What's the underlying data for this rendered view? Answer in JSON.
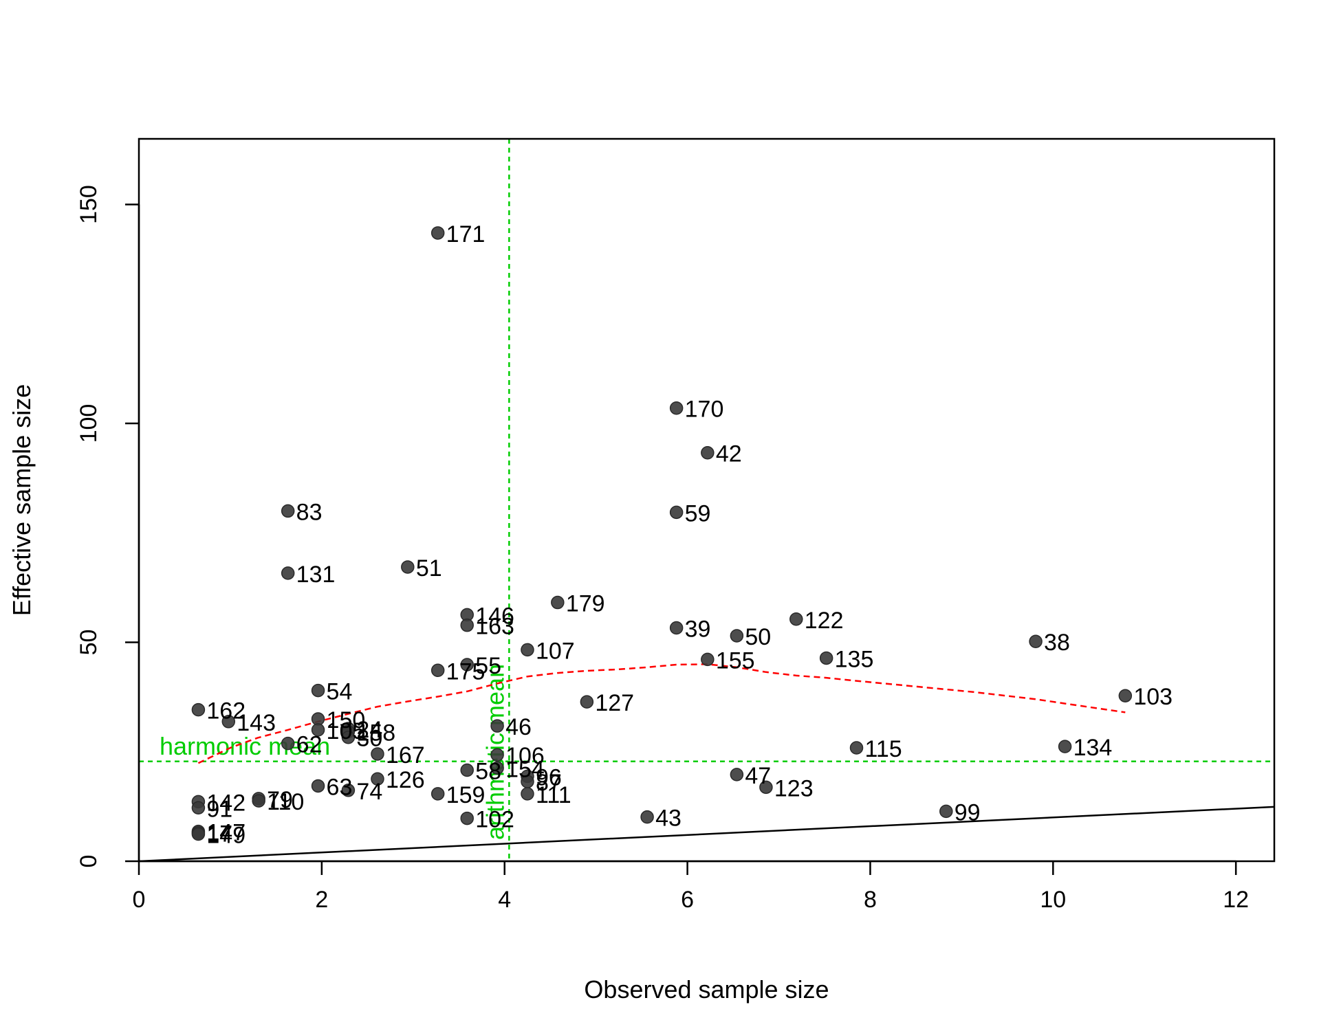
{
  "chart_data": {
    "type": "scatter",
    "title": "",
    "xlabel": "Observed sample size",
    "ylabel": "Effective sample size",
    "xlim": [
      0,
      12.42
    ],
    "ylim": [
      0,
      165
    ],
    "x_ticks": [
      0,
      2,
      4,
      6,
      8,
      10,
      12
    ],
    "y_ticks": [
      0,
      50,
      100,
      150
    ],
    "grid": false,
    "legend": "none",
    "colors": {
      "point": "#3a3a3a",
      "smooth": "#ff0000",
      "reference": "#00cc00",
      "identity": "#000000"
    },
    "points": [
      {
        "id": "171",
        "x": 3.27,
        "y": 143.5
      },
      {
        "id": "170",
        "x": 5.88,
        "y": 103.5
      },
      {
        "id": "42",
        "x": 6.22,
        "y": 93.3
      },
      {
        "id": "83",
        "x": 1.63,
        "y": 80.0
      },
      {
        "id": "59",
        "x": 5.88,
        "y": 79.7
      },
      {
        "id": "131",
        "x": 1.63,
        "y": 65.8
      },
      {
        "id": "51",
        "x": 2.94,
        "y": 67.2
      },
      {
        "id": "179",
        "x": 4.58,
        "y": 59.1
      },
      {
        "id": "146",
        "x": 3.59,
        "y": 56.3
      },
      {
        "id": "163",
        "x": 3.59,
        "y": 53.9
      },
      {
        "id": "39",
        "x": 5.88,
        "y": 53.3
      },
      {
        "id": "50",
        "x": 6.54,
        "y": 51.5
      },
      {
        "id": "122",
        "x": 7.19,
        "y": 55.3
      },
      {
        "id": "38",
        "x": 9.81,
        "y": 50.2
      },
      {
        "id": "107",
        "x": 4.25,
        "y": 48.3
      },
      {
        "id": "155",
        "x": 6.22,
        "y": 46.1
      },
      {
        "id": "135",
        "x": 7.52,
        "y": 46.4
      },
      {
        "id": "175",
        "x": 3.27,
        "y": 43.6
      },
      {
        "id": "55",
        "x": 3.59,
        "y": 44.9
      },
      {
        "id": "54",
        "x": 1.96,
        "y": 39.0
      },
      {
        "id": "103",
        "x": 10.79,
        "y": 37.8
      },
      {
        "id": "127",
        "x": 4.9,
        "y": 36.4
      },
      {
        "id": "162",
        "x": 0.65,
        "y": 34.6
      },
      {
        "id": "143",
        "x": 0.98,
        "y": 31.9
      },
      {
        "id": "150",
        "x": 1.96,
        "y": 32.5
      },
      {
        "id": "46",
        "x": 3.92,
        "y": 30.9
      },
      {
        "id": "105",
        "x": 1.96,
        "y": 30.0
      },
      {
        "id": "24",
        "x": 2.29,
        "y": 30.3
      },
      {
        "id": "158",
        "x": 2.29,
        "y": 29.6
      },
      {
        "id": "30",
        "x": 2.29,
        "y": 28.3
      },
      {
        "id": "62",
        "x": 1.63,
        "y": 26.9
      },
      {
        "id": "115",
        "x": 7.85,
        "y": 25.9
      },
      {
        "id": "134",
        "x": 10.13,
        "y": 26.2
      },
      {
        "id": "167",
        "x": 2.61,
        "y": 24.5
      },
      {
        "id": "106",
        "x": 3.92,
        "y": 24.3
      },
      {
        "id": "58",
        "x": 3.59,
        "y": 20.8
      },
      {
        "id": "154",
        "x": 3.92,
        "y": 21.3
      },
      {
        "id": "47",
        "x": 6.54,
        "y": 19.8
      },
      {
        "id": "96",
        "x": 4.25,
        "y": 19.4
      },
      {
        "id": "87",
        "x": 4.25,
        "y": 18.2
      },
      {
        "id": "126",
        "x": 2.61,
        "y": 18.8
      },
      {
        "id": "63",
        "x": 1.96,
        "y": 17.2
      },
      {
        "id": "123",
        "x": 6.86,
        "y": 16.9
      },
      {
        "id": "74",
        "x": 2.29,
        "y": 16.2
      },
      {
        "id": "111",
        "x": 4.25,
        "y": 15.4
      },
      {
        "id": "159",
        "x": 3.27,
        "y": 15.4
      },
      {
        "id": "79",
        "x": 1.31,
        "y": 14.3
      },
      {
        "id": "110",
        "x": 1.31,
        "y": 13.8
      },
      {
        "id": "142",
        "x": 0.65,
        "y": 13.6
      },
      {
        "id": "91",
        "x": 0.65,
        "y": 12.2
      },
      {
        "id": "99",
        "x": 8.83,
        "y": 11.4
      },
      {
        "id": "43",
        "x": 5.56,
        "y": 10.1
      },
      {
        "id": "102",
        "x": 3.59,
        "y": 9.8
      },
      {
        "id": "147",
        "x": 0.65,
        "y": 6.8
      },
      {
        "id": "17",
        "x": 0.65,
        "y": 6.5
      },
      {
        "id": "149",
        "x": 0.65,
        "y": 6.2
      }
    ],
    "smooth_line": {
      "x": [
        0.65,
        1.0,
        1.3,
        1.63,
        1.96,
        2.3,
        2.61,
        2.94,
        3.27,
        3.59,
        3.92,
        4.25,
        4.58,
        4.9,
        5.23,
        5.56,
        5.88,
        6.22,
        6.54,
        6.86,
        7.19,
        7.52,
        7.85,
        8.5,
        9.15,
        9.81,
        10.3,
        10.79
      ],
      "y": [
        22.4,
        25.9,
        28.2,
        30.0,
        31.9,
        33.7,
        35.3,
        36.5,
        37.6,
        38.8,
        40.6,
        42.2,
        43.0,
        43.5,
        43.8,
        44.3,
        44.9,
        45.0,
        44.3,
        43.2,
        42.4,
        41.9,
        41.2,
        39.9,
        38.6,
        37.0,
        35.5,
        34.0
      ]
    },
    "identity_line": {
      "x": [
        0,
        12.42
      ],
      "y": [
        0,
        12.42
      ]
    },
    "reference_lines": [
      {
        "orientation": "vertical",
        "x": 4.05,
        "label": "arithmetic mean"
      },
      {
        "orientation": "horizontal",
        "y": 22.8,
        "label": "harmonic mean"
      }
    ]
  }
}
